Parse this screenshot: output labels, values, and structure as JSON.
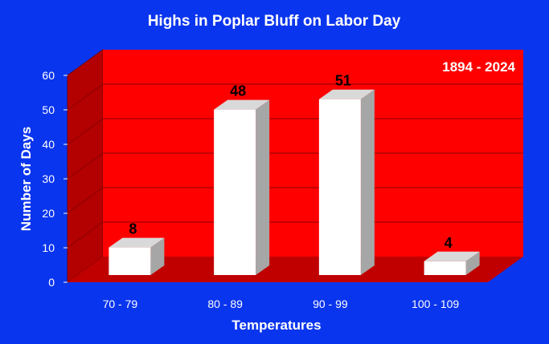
{
  "chart_data": {
    "type": "bar",
    "title": "Highs in Poplar Bluff on Labor Day",
    "annotation": "1894 - 2024",
    "xlabel": "Temperatures",
    "ylabel": "Number of Days",
    "categories": [
      "70 - 79",
      "80 - 89",
      "90 - 99",
      "100 - 109"
    ],
    "values": [
      8,
      48,
      51,
      4
    ],
    "ylim": [
      0,
      60
    ],
    "yticks": [
      0,
      10,
      20,
      30,
      40,
      50,
      60
    ],
    "grid": true,
    "legend": "none",
    "colors": {
      "background": "#0a35ee",
      "plot_back_wall": "#ff0000",
      "plot_side_wall": "#b30000",
      "plot_floor": "#c00000",
      "bar_front": "#ffffff",
      "bar_top": "#d9d9d9",
      "bar_side": "#a6a6a6",
      "text": "#ffffff",
      "data_label": "#000000"
    }
  }
}
